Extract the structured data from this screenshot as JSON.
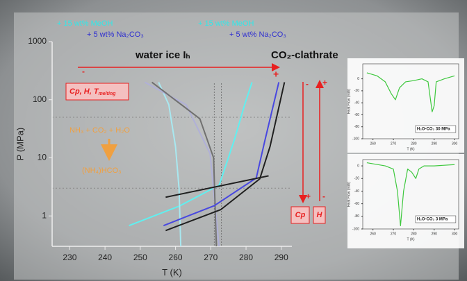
{
  "chart_data": [
    {
      "type": "line",
      "log_y": true,
      "xlabel": "T (K)",
      "ylabel": "P (MPa)",
      "xlim": [
        225,
        293
      ],
      "ylim": [
        0.3,
        1000
      ],
      "xticks": [
        230,
        240,
        250,
        260,
        270,
        280,
        290
      ],
      "yticks": [
        1,
        10,
        100,
        1000
      ],
      "hlines": [
        50,
        3
      ],
      "vlines": [
        271,
        273
      ],
      "series": [
        {
          "color": "#5ff0f0",
          "x": [
            246.8,
            261,
            272.4,
            276.7,
            279.6,
            281.7
          ],
          "values": [
            0.68,
            1.47,
            3.4,
            20.5,
            82,
            200
          ]
        },
        {
          "color": "#a8e8f0",
          "x": [
            255.2,
            258.1,
            260,
            261,
            261.5
          ],
          "values": [
            200,
            82,
            15.6,
            2.95,
            0.28
          ]
        },
        {
          "color": "#b0b0d8",
          "x": [
            251.3,
            263,
            269.8,
            272.4
          ],
          "values": [
            200,
            82,
            11.8,
            0.28
          ]
        },
        {
          "color": "#707070",
          "x": [
            253.3,
            266.9,
            270.8,
            271.6
          ],
          "values": [
            200,
            47,
            10,
            0.28
          ]
        },
        {
          "color": "#4848e0",
          "x": [
            256.6,
            263,
            271,
            282.9,
            285.4,
            289.3
          ],
          "values": [
            0.68,
            0.97,
            1.5,
            4.5,
            20.5,
            200
          ]
        },
        {
          "color": "#202020",
          "x": [
            257.2,
            272.8,
            283.9,
            286.8,
            290.9
          ],
          "values": [
            0.56,
            1.28,
            4.35,
            15.6,
            200
          ]
        },
        {
          "color": "#202020",
          "x": [
            257.2,
            286.4
          ],
          "values": [
            2.1,
            4.9
          ]
        }
      ],
      "annotations": [
        "+ 15 wt% MeOH",
        "+ 5 wt% Na₂CO₃",
        "+ 15 wt% MeOH",
        "+ 5 wt% Na₂CO₃",
        "water ice Iₕ",
        "CO₂-clathrate",
        "NH₃ + CO₂ + H₂O",
        "(NH₄)HCO₃",
        "Cp",
        "H",
        "-",
        "+",
        "-",
        "+",
        "+",
        "-"
      ],
      "property_label": {
        "text": "Cp, H, T",
        "subscript": "melting"
      }
    },
    {
      "type": "line",
      "xlabel": "T (K)",
      "ylabel": "Heat Flow (mW)",
      "xlim": [
        255,
        302
      ],
      "ylim": [
        -100,
        25
      ],
      "xticks": [
        260,
        270,
        280,
        290,
        300
      ],
      "yticks": [
        0,
        -20,
        -40,
        -60,
        -80,
        -100
      ],
      "legend": "H₂O-CO₂ 30 MPa",
      "series": [
        {
          "color": "#3ec83e",
          "x": [
            257,
            262,
            266,
            269,
            271,
            273,
            276,
            280,
            284,
            287,
            289,
            290,
            291,
            295,
            300
          ],
          "values": [
            10,
            5,
            -5,
            -25,
            -35,
            -15,
            -5,
            -3,
            0,
            -5,
            -55,
            -45,
            -5,
            0,
            5
          ]
        }
      ]
    },
    {
      "type": "line",
      "xlabel": "T (K)",
      "ylabel": "Heat Flow (mW)",
      "xlim": [
        255,
        302
      ],
      "ylim": [
        -100,
        10
      ],
      "xticks": [
        260,
        270,
        280,
        290,
        300
      ],
      "yticks": [
        0,
        -20,
        -40,
        -60,
        -80,
        -100
      ],
      "legend": "H₂O-CO₂ 3 MPa",
      "series": [
        {
          "color": "#3ec83e",
          "x": [
            257,
            266,
            270,
            272,
            273.5,
            275,
            277,
            279,
            281,
            282.5,
            285,
            290,
            300
          ],
          "values": [
            5,
            0,
            -5,
            -40,
            -95,
            -40,
            -5,
            -10,
            -20,
            -5,
            0,
            0,
            2
          ]
        }
      ]
    }
  ]
}
